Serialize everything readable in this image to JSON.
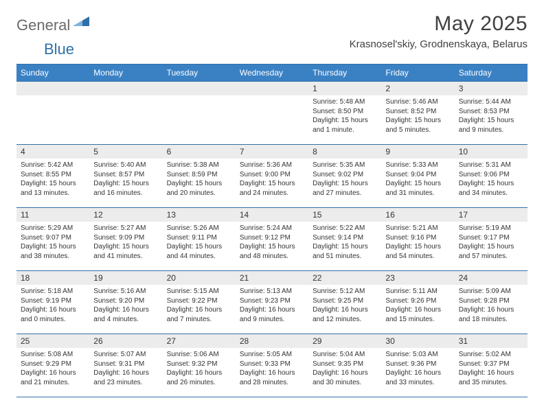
{
  "logo": {
    "general": "General",
    "blue": "Blue"
  },
  "title": "May 2025",
  "location": "Krasnosel'skiy, Grodnenskaya, Belarus",
  "colors": {
    "header_bg": "#3a81c4",
    "border": "#2f6fa8",
    "daynum_bg": "#ececec",
    "text": "#333333",
    "title_text": "#404040",
    "logo_gray": "#6a6a6a",
    "logo_blue": "#2f6fa8",
    "page_bg": "#ffffff"
  },
  "day_headers": [
    "Sunday",
    "Monday",
    "Tuesday",
    "Wednesday",
    "Thursday",
    "Friday",
    "Saturday"
  ],
  "weeks": [
    [
      null,
      null,
      null,
      null,
      {
        "n": "1",
        "sr": "5:48 AM",
        "ss": "8:50 PM",
        "dl": "15 hours and 1 minute."
      },
      {
        "n": "2",
        "sr": "5:46 AM",
        "ss": "8:52 PM",
        "dl": "15 hours and 5 minutes."
      },
      {
        "n": "3",
        "sr": "5:44 AM",
        "ss": "8:53 PM",
        "dl": "15 hours and 9 minutes."
      }
    ],
    [
      {
        "n": "4",
        "sr": "5:42 AM",
        "ss": "8:55 PM",
        "dl": "15 hours and 13 minutes."
      },
      {
        "n": "5",
        "sr": "5:40 AM",
        "ss": "8:57 PM",
        "dl": "15 hours and 16 minutes."
      },
      {
        "n": "6",
        "sr": "5:38 AM",
        "ss": "8:59 PM",
        "dl": "15 hours and 20 minutes."
      },
      {
        "n": "7",
        "sr": "5:36 AM",
        "ss": "9:00 PM",
        "dl": "15 hours and 24 minutes."
      },
      {
        "n": "8",
        "sr": "5:35 AM",
        "ss": "9:02 PM",
        "dl": "15 hours and 27 minutes."
      },
      {
        "n": "9",
        "sr": "5:33 AM",
        "ss": "9:04 PM",
        "dl": "15 hours and 31 minutes."
      },
      {
        "n": "10",
        "sr": "5:31 AM",
        "ss": "9:06 PM",
        "dl": "15 hours and 34 minutes."
      }
    ],
    [
      {
        "n": "11",
        "sr": "5:29 AM",
        "ss": "9:07 PM",
        "dl": "15 hours and 38 minutes."
      },
      {
        "n": "12",
        "sr": "5:27 AM",
        "ss": "9:09 PM",
        "dl": "15 hours and 41 minutes."
      },
      {
        "n": "13",
        "sr": "5:26 AM",
        "ss": "9:11 PM",
        "dl": "15 hours and 44 minutes."
      },
      {
        "n": "14",
        "sr": "5:24 AM",
        "ss": "9:12 PM",
        "dl": "15 hours and 48 minutes."
      },
      {
        "n": "15",
        "sr": "5:22 AM",
        "ss": "9:14 PM",
        "dl": "15 hours and 51 minutes."
      },
      {
        "n": "16",
        "sr": "5:21 AM",
        "ss": "9:16 PM",
        "dl": "15 hours and 54 minutes."
      },
      {
        "n": "17",
        "sr": "5:19 AM",
        "ss": "9:17 PM",
        "dl": "15 hours and 57 minutes."
      }
    ],
    [
      {
        "n": "18",
        "sr": "5:18 AM",
        "ss": "9:19 PM",
        "dl": "16 hours and 0 minutes."
      },
      {
        "n": "19",
        "sr": "5:16 AM",
        "ss": "9:20 PM",
        "dl": "16 hours and 4 minutes."
      },
      {
        "n": "20",
        "sr": "5:15 AM",
        "ss": "9:22 PM",
        "dl": "16 hours and 7 minutes."
      },
      {
        "n": "21",
        "sr": "5:13 AM",
        "ss": "9:23 PM",
        "dl": "16 hours and 9 minutes."
      },
      {
        "n": "22",
        "sr": "5:12 AM",
        "ss": "9:25 PM",
        "dl": "16 hours and 12 minutes."
      },
      {
        "n": "23",
        "sr": "5:11 AM",
        "ss": "9:26 PM",
        "dl": "16 hours and 15 minutes."
      },
      {
        "n": "24",
        "sr": "5:09 AM",
        "ss": "9:28 PM",
        "dl": "16 hours and 18 minutes."
      }
    ],
    [
      {
        "n": "25",
        "sr": "5:08 AM",
        "ss": "9:29 PM",
        "dl": "16 hours and 21 minutes."
      },
      {
        "n": "26",
        "sr": "5:07 AM",
        "ss": "9:31 PM",
        "dl": "16 hours and 23 minutes."
      },
      {
        "n": "27",
        "sr": "5:06 AM",
        "ss": "9:32 PM",
        "dl": "16 hours and 26 minutes."
      },
      {
        "n": "28",
        "sr": "5:05 AM",
        "ss": "9:33 PM",
        "dl": "16 hours and 28 minutes."
      },
      {
        "n": "29",
        "sr": "5:04 AM",
        "ss": "9:35 PM",
        "dl": "16 hours and 30 minutes."
      },
      {
        "n": "30",
        "sr": "5:03 AM",
        "ss": "9:36 PM",
        "dl": "16 hours and 33 minutes."
      },
      {
        "n": "31",
        "sr": "5:02 AM",
        "ss": "9:37 PM",
        "dl": "16 hours and 35 minutes."
      }
    ]
  ],
  "labels": {
    "sunrise": "Sunrise:",
    "sunset": "Sunset:",
    "daylight": "Daylight:"
  }
}
